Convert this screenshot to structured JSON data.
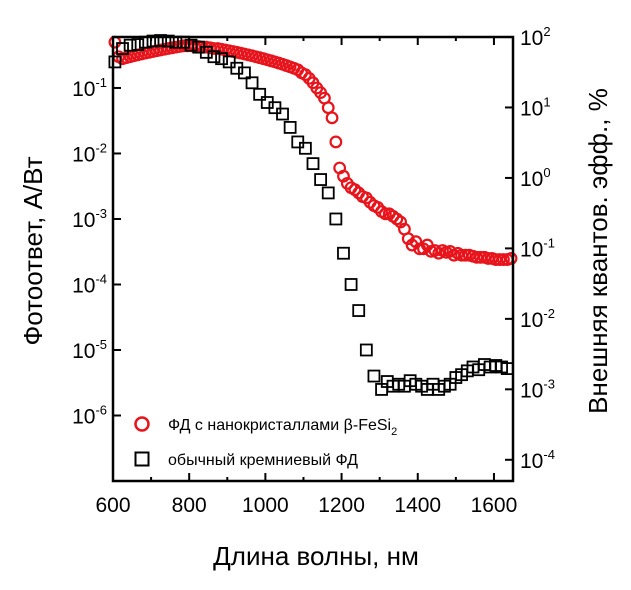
{
  "chart_data": {
    "type": "scatter",
    "xlabel": "Длина волны, нм",
    "ylabel_left": "Фотоответ, А/Вт",
    "ylabel_right": "Внешняя квантов. эфф., %",
    "xlim": [
      600,
      1650
    ],
    "ylim_left": [
      1e-07,
      0.6
    ],
    "ylim_right": [
      5e-05,
      100
    ],
    "yscale": "log",
    "grid": false,
    "legend_position": "bottom-left",
    "x_ticks": [
      600,
      800,
      1000,
      1200,
      1400,
      1600
    ],
    "x_tick_labels": [
      "600",
      "800",
      "1000",
      "1200",
      "1400",
      "1600"
    ],
    "y_left_ticks": [
      {
        "value": 0.1,
        "base": "10",
        "exp": "-1"
      },
      {
        "value": 0.01,
        "base": "10",
        "exp": "-2"
      },
      {
        "value": 0.001,
        "base": "10",
        "exp": "-3"
      },
      {
        "value": 0.0001,
        "base": "10",
        "exp": "-4"
      },
      {
        "value": 1e-05,
        "base": "10",
        "exp": "-5"
      },
      {
        "value": 1e-06,
        "base": "10",
        "exp": "-6"
      }
    ],
    "y_right_ticks": [
      {
        "value": 100,
        "base": "10",
        "exp": "2"
      },
      {
        "value": 10,
        "base": "10",
        "exp": "1"
      },
      {
        "value": 1,
        "base": "10",
        "exp": "0"
      },
      {
        "value": 0.1,
        "base": "10",
        "exp": "-1"
      },
      {
        "value": 0.01,
        "base": "10",
        "exp": "-2"
      },
      {
        "value": 0.001,
        "base": "10",
        "exp": "-3"
      },
      {
        "value": 0.0001,
        "base": "10",
        "exp": "-4"
      }
    ],
    "series": [
      {
        "name": "ФД с нанокристаллами β-FeSi",
        "name_subscript": "2",
        "marker": "circle",
        "color": "#e8141c",
        "points": [
          [
            605,
            0.5
          ],
          [
            615,
            0.3
          ],
          [
            625,
            0.28
          ],
          [
            635,
            0.29
          ],
          [
            645,
            0.3
          ],
          [
            655,
            0.31
          ],
          [
            665,
            0.32
          ],
          [
            675,
            0.33
          ],
          [
            685,
            0.34
          ],
          [
            695,
            0.35
          ],
          [
            705,
            0.36
          ],
          [
            715,
            0.37
          ],
          [
            725,
            0.38
          ],
          [
            735,
            0.39
          ],
          [
            745,
            0.4
          ],
          [
            755,
            0.41
          ],
          [
            765,
            0.42
          ],
          [
            775,
            0.43
          ],
          [
            785,
            0.44
          ],
          [
            795,
            0.44
          ],
          [
            805,
            0.44
          ],
          [
            815,
            0.43
          ],
          [
            825,
            0.43
          ],
          [
            835,
            0.42
          ],
          [
            845,
            0.42
          ],
          [
            855,
            0.41
          ],
          [
            865,
            0.4
          ],
          [
            875,
            0.4
          ],
          [
            885,
            0.39
          ],
          [
            895,
            0.38
          ],
          [
            905,
            0.37
          ],
          [
            915,
            0.36
          ],
          [
            925,
            0.35
          ],
          [
            935,
            0.34
          ],
          [
            945,
            0.33
          ],
          [
            955,
            0.32
          ],
          [
            965,
            0.31
          ],
          [
            975,
            0.3
          ],
          [
            985,
            0.29
          ],
          [
            995,
            0.28
          ],
          [
            1005,
            0.27
          ],
          [
            1015,
            0.26
          ],
          [
            1025,
            0.25
          ],
          [
            1035,
            0.24
          ],
          [
            1045,
            0.23
          ],
          [
            1055,
            0.22
          ],
          [
            1065,
            0.21
          ],
          [
            1075,
            0.2
          ],
          [
            1085,
            0.19
          ],
          [
            1095,
            0.17
          ],
          [
            1105,
            0.16
          ],
          [
            1115,
            0.14
          ],
          [
            1125,
            0.12
          ],
          [
            1135,
            0.1
          ],
          [
            1145,
            0.085
          ],
          [
            1155,
            0.07
          ],
          [
            1165,
            0.05
          ],
          [
            1175,
            0.035
          ],
          [
            1185,
            0.015
          ],
          [
            1195,
            0.006
          ],
          [
            1205,
            0.0045
          ],
          [
            1215,
            0.0035
          ],
          [
            1225,
            0.003
          ],
          [
            1235,
            0.0028
          ],
          [
            1245,
            0.0025
          ],
          [
            1255,
            0.0022
          ],
          [
            1265,
            0.0021
          ],
          [
            1275,
            0.0018
          ],
          [
            1285,
            0.0016
          ],
          [
            1295,
            0.0015
          ],
          [
            1305,
            0.0013
          ],
          [
            1315,
            0.0012
          ],
          [
            1325,
            0.0012
          ],
          [
            1335,
            0.0011
          ],
          [
            1345,
            0.001
          ],
          [
            1355,
            0.0009
          ],
          [
            1365,
            0.0007
          ],
          [
            1375,
            0.0005
          ],
          [
            1385,
            0.0004
          ],
          [
            1395,
            0.00045
          ],
          [
            1405,
            0.00035
          ],
          [
            1415,
            0.00035
          ],
          [
            1425,
            0.0004
          ],
          [
            1435,
            0.00032
          ],
          [
            1445,
            0.00033
          ],
          [
            1455,
            0.0003
          ],
          [
            1465,
            0.00033
          ],
          [
            1475,
            0.00031
          ],
          [
            1485,
            0.00032
          ],
          [
            1495,
            0.00028
          ],
          [
            1505,
            0.0003
          ],
          [
            1515,
            0.00028
          ],
          [
            1525,
            0.00028
          ],
          [
            1535,
            0.00028
          ],
          [
            1545,
            0.00027
          ],
          [
            1555,
            0.00026
          ],
          [
            1565,
            0.00026
          ],
          [
            1575,
            0.00026
          ],
          [
            1585,
            0.00025
          ],
          [
            1595,
            0.00025
          ],
          [
            1605,
            0.00024
          ],
          [
            1615,
            0.00024
          ],
          [
            1625,
            0.00024
          ],
          [
            1635,
            0.00024
          ],
          [
            1645,
            0.00025
          ]
        ]
      },
      {
        "name": "обычный кремниевый ФД",
        "marker": "square",
        "color": "#000000",
        "points": [
          [
            605,
            0.25
          ],
          [
            625,
            0.4
          ],
          [
            645,
            0.45
          ],
          [
            665,
            0.46
          ],
          [
            685,
            0.5
          ],
          [
            705,
            0.52
          ],
          [
            725,
            0.53
          ],
          [
            745,
            0.52
          ],
          [
            765,
            0.5
          ],
          [
            785,
            0.5
          ],
          [
            805,
            0.45
          ],
          [
            825,
            0.42
          ],
          [
            845,
            0.35
          ],
          [
            865,
            0.3
          ],
          [
            885,
            0.28
          ],
          [
            905,
            0.25
          ],
          [
            925,
            0.2
          ],
          [
            945,
            0.17
          ],
          [
            965,
            0.12
          ],
          [
            985,
            0.08
          ],
          [
            1005,
            0.06
          ],
          [
            1025,
            0.05
          ],
          [
            1045,
            0.04
          ],
          [
            1065,
            0.025
          ],
          [
            1085,
            0.015
          ],
          [
            1105,
            0.012
          ],
          [
            1125,
            0.007
          ],
          [
            1145,
            0.004
          ],
          [
            1165,
            0.0025
          ],
          [
            1185,
            0.001
          ],
          [
            1205,
            0.0003
          ],
          [
            1225,
            0.0001
          ],
          [
            1245,
            4e-05
          ],
          [
            1265,
            1e-05
          ],
          [
            1285,
            4e-06
          ],
          [
            1305,
            2.5e-06
          ],
          [
            1320,
            3.3e-06
          ],
          [
            1335,
            2.8e-06
          ],
          [
            1350,
            3e-06
          ],
          [
            1365,
            2.8e-06
          ],
          [
            1380,
            3.4e-06
          ],
          [
            1395,
            3e-06
          ],
          [
            1410,
            2.8e-06
          ],
          [
            1425,
            2.5e-06
          ],
          [
            1440,
            3e-06
          ],
          [
            1455,
            2.5e-06
          ],
          [
            1470,
            2.8e-06
          ],
          [
            1485,
            3e-06
          ],
          [
            1500,
            3.8e-06
          ],
          [
            1515,
            4.2e-06
          ],
          [
            1530,
            4.8e-06
          ],
          [
            1545,
            5.5e-06
          ],
          [
            1560,
            5e-06
          ],
          [
            1575,
            6e-06
          ],
          [
            1590,
            5.5e-06
          ],
          [
            1605,
            5.8e-06
          ],
          [
            1620,
            5.5e-06
          ],
          [
            1635,
            5.2e-06
          ]
        ]
      }
    ]
  }
}
